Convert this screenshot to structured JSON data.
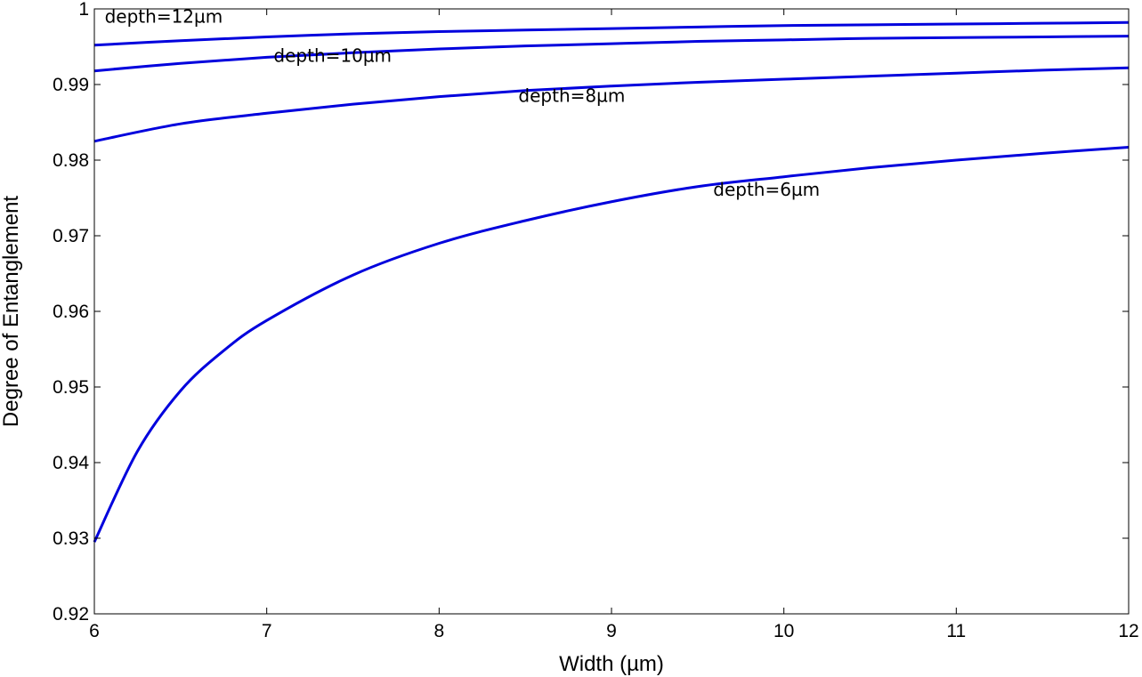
{
  "chart_data": {
    "type": "line",
    "title": "",
    "xlabel": "Width (µm)",
    "ylabel": "Degree of Entanglement",
    "xlim": [
      6,
      12
    ],
    "ylim": [
      0.92,
      1
    ],
    "xticks": [
      6,
      7,
      8,
      9,
      10,
      11,
      12
    ],
    "yticks": [
      0.92,
      0.93,
      0.94,
      0.95,
      0.96,
      0.97,
      0.98,
      0.99,
      1
    ],
    "xtick_labels": [
      "6",
      "7",
      "8",
      "9",
      "10",
      "11",
      "12"
    ],
    "ytick_labels": [
      "0.92",
      "0.93",
      "0.94",
      "0.95",
      "0.96",
      "0.97",
      "0.98",
      "0.99",
      "1"
    ],
    "grid": false,
    "line_color": "#0000dd",
    "series": [
      {
        "name": "depth=12µm",
        "x": [
          6,
          6.5,
          7,
          7.5,
          8,
          8.5,
          9,
          9.5,
          10,
          10.5,
          11,
          11.5,
          12
        ],
        "y": [
          0.9952,
          0.9958,
          0.9963,
          0.9967,
          0.997,
          0.9972,
          0.9974,
          0.9976,
          0.9978,
          0.9979,
          0.998,
          0.9981,
          0.9982
        ]
      },
      {
        "name": "depth=10µm",
        "x": [
          6,
          6.5,
          7,
          7.5,
          8,
          8.5,
          9,
          9.5,
          10,
          10.5,
          11,
          11.5,
          12
        ],
        "y": [
          0.9918,
          0.9928,
          0.9936,
          0.9942,
          0.9947,
          0.9951,
          0.9954,
          0.9957,
          0.9959,
          0.9961,
          0.9962,
          0.9963,
          0.9964
        ]
      },
      {
        "name": "depth=8µm",
        "x": [
          6,
          6.5,
          7,
          7.5,
          8,
          8.5,
          9,
          9.5,
          10,
          10.5,
          11,
          11.5,
          12
        ],
        "y": [
          0.9825,
          0.9848,
          0.9862,
          0.9874,
          0.9884,
          0.9892,
          0.9898,
          0.9903,
          0.9907,
          0.9911,
          0.9915,
          0.9919,
          0.9922
        ]
      },
      {
        "name": "depth=6µm",
        "x": [
          6,
          6.25,
          6.5,
          6.75,
          7,
          7.5,
          8,
          8.5,
          9,
          9.5,
          10,
          10.5,
          11,
          11.5,
          12
        ],
        "y": [
          0.9295,
          0.9415,
          0.9495,
          0.9548,
          0.9588,
          0.9648,
          0.969,
          0.972,
          0.9745,
          0.9765,
          0.9778,
          0.979,
          0.98,
          0.9809,
          0.9817
        ]
      }
    ],
    "annotations": [
      {
        "text": "depth=12µm",
        "x": 6.06,
        "y": 0.9982
      },
      {
        "text": "depth=10µm",
        "x": 7.04,
        "y": 0.993
      },
      {
        "text": "depth=8µm",
        "x": 8.46,
        "y": 0.9877
      },
      {
        "text": "depth=6µm",
        "x": 9.59,
        "y": 0.9753
      }
    ]
  }
}
